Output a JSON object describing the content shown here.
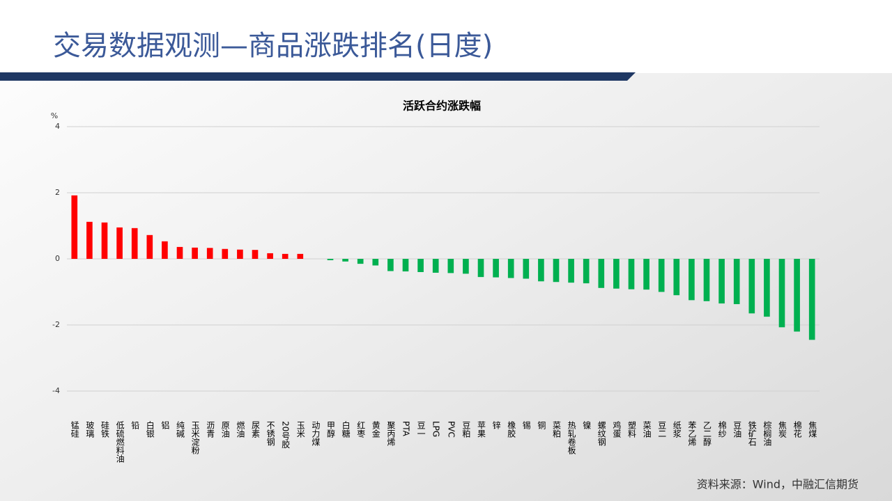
{
  "header": {
    "title": "交易数据观测—商品涨跌排名(日度)"
  },
  "chart_data": {
    "type": "bar",
    "title": "活跃合约涨跌幅",
    "y_label": "%",
    "categories": [
      "锰硅",
      "玻璃",
      "硅铁",
      "低硫燃料油",
      "铅",
      "白银",
      "铝",
      "纯碱",
      "玉米淀粉",
      "沥青",
      "原油",
      "燃油",
      "尿素",
      "不锈钢",
      "20号胶",
      "玉米",
      "动力煤",
      "甲醇",
      "白糖",
      "红枣",
      "黄金",
      "聚丙烯",
      "PTA",
      "豆一",
      "LPG",
      "PVC",
      "豆粕",
      "苹果",
      "锌",
      "橡胶",
      "锡",
      "铜",
      "菜粕",
      "热轧卷板",
      "镍",
      "螺纹钢",
      "鸡蛋",
      "塑料",
      "菜油",
      "豆二",
      "纸浆",
      "苯乙烯",
      "乙二醇",
      "棉纱",
      "豆油",
      "铁矿石",
      "棕榈油",
      "焦炭",
      "棉花",
      "焦煤"
    ],
    "values": [
      1.92,
      1.12,
      1.1,
      0.95,
      0.93,
      0.72,
      0.53,
      0.36,
      0.34,
      0.33,
      0.3,
      0.28,
      0.27,
      0.17,
      0.15,
      0.15,
      0,
      -0.04,
      -0.08,
      -0.15,
      -0.2,
      -0.37,
      -0.38,
      -0.4,
      -0.42,
      -0.43,
      -0.45,
      -0.55,
      -0.56,
      -0.58,
      -0.6,
      -0.68,
      -0.7,
      -0.72,
      -0.74,
      -0.88,
      -0.9,
      -0.92,
      -0.93,
      -1.0,
      -1.1,
      -1.25,
      -1.28,
      -1.35,
      -1.37,
      -1.65,
      -1.75,
      -2.07,
      -2.2,
      -2.45
    ],
    "positive_color": "#ff0000",
    "negative_color": "#00b050",
    "ylim": [
      -4,
      4
    ],
    "yticks": [
      4,
      2,
      0,
      -2,
      -4
    ],
    "grid": true
  },
  "footer": {
    "source": "资料来源：Wind，中融汇信期货"
  }
}
